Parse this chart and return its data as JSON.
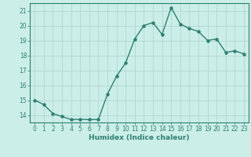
{
  "x": [
    0,
    1,
    2,
    3,
    4,
    5,
    6,
    7,
    8,
    9,
    10,
    11,
    12,
    13,
    14,
    15,
    16,
    17,
    18,
    19,
    20,
    21,
    22,
    23
  ],
  "y": [
    15.0,
    14.7,
    14.1,
    13.9,
    13.7,
    13.7,
    13.7,
    13.7,
    15.4,
    16.6,
    17.5,
    19.1,
    20.0,
    20.2,
    19.4,
    21.2,
    20.1,
    19.8,
    19.6,
    19.0,
    19.1,
    18.2,
    18.3,
    18.1
  ],
  "line_color": "#2e8070",
  "marker": "o",
  "markersize": 2.2,
  "linewidth": 1.0,
  "xlabel": "Humidex (Indice chaleur)",
  "bg_color": "#cceee8",
  "grid_color": "#b0d8d2",
  "axis_color": "#2e8070",
  "tick_color": "#2e8070",
  "xlim": [
    -0.5,
    23.5
  ],
  "ylim": [
    13.5,
    21.5
  ],
  "yticks": [
    14,
    15,
    16,
    17,
    18,
    19,
    20,
    21
  ],
  "xticks": [
    0,
    1,
    2,
    3,
    4,
    5,
    6,
    7,
    8,
    9,
    10,
    11,
    12,
    13,
    14,
    15,
    16,
    17,
    18,
    19,
    20,
    21,
    22,
    23
  ],
  "xlabel_fontsize": 6.5,
  "tick_fontsize": 5.5
}
